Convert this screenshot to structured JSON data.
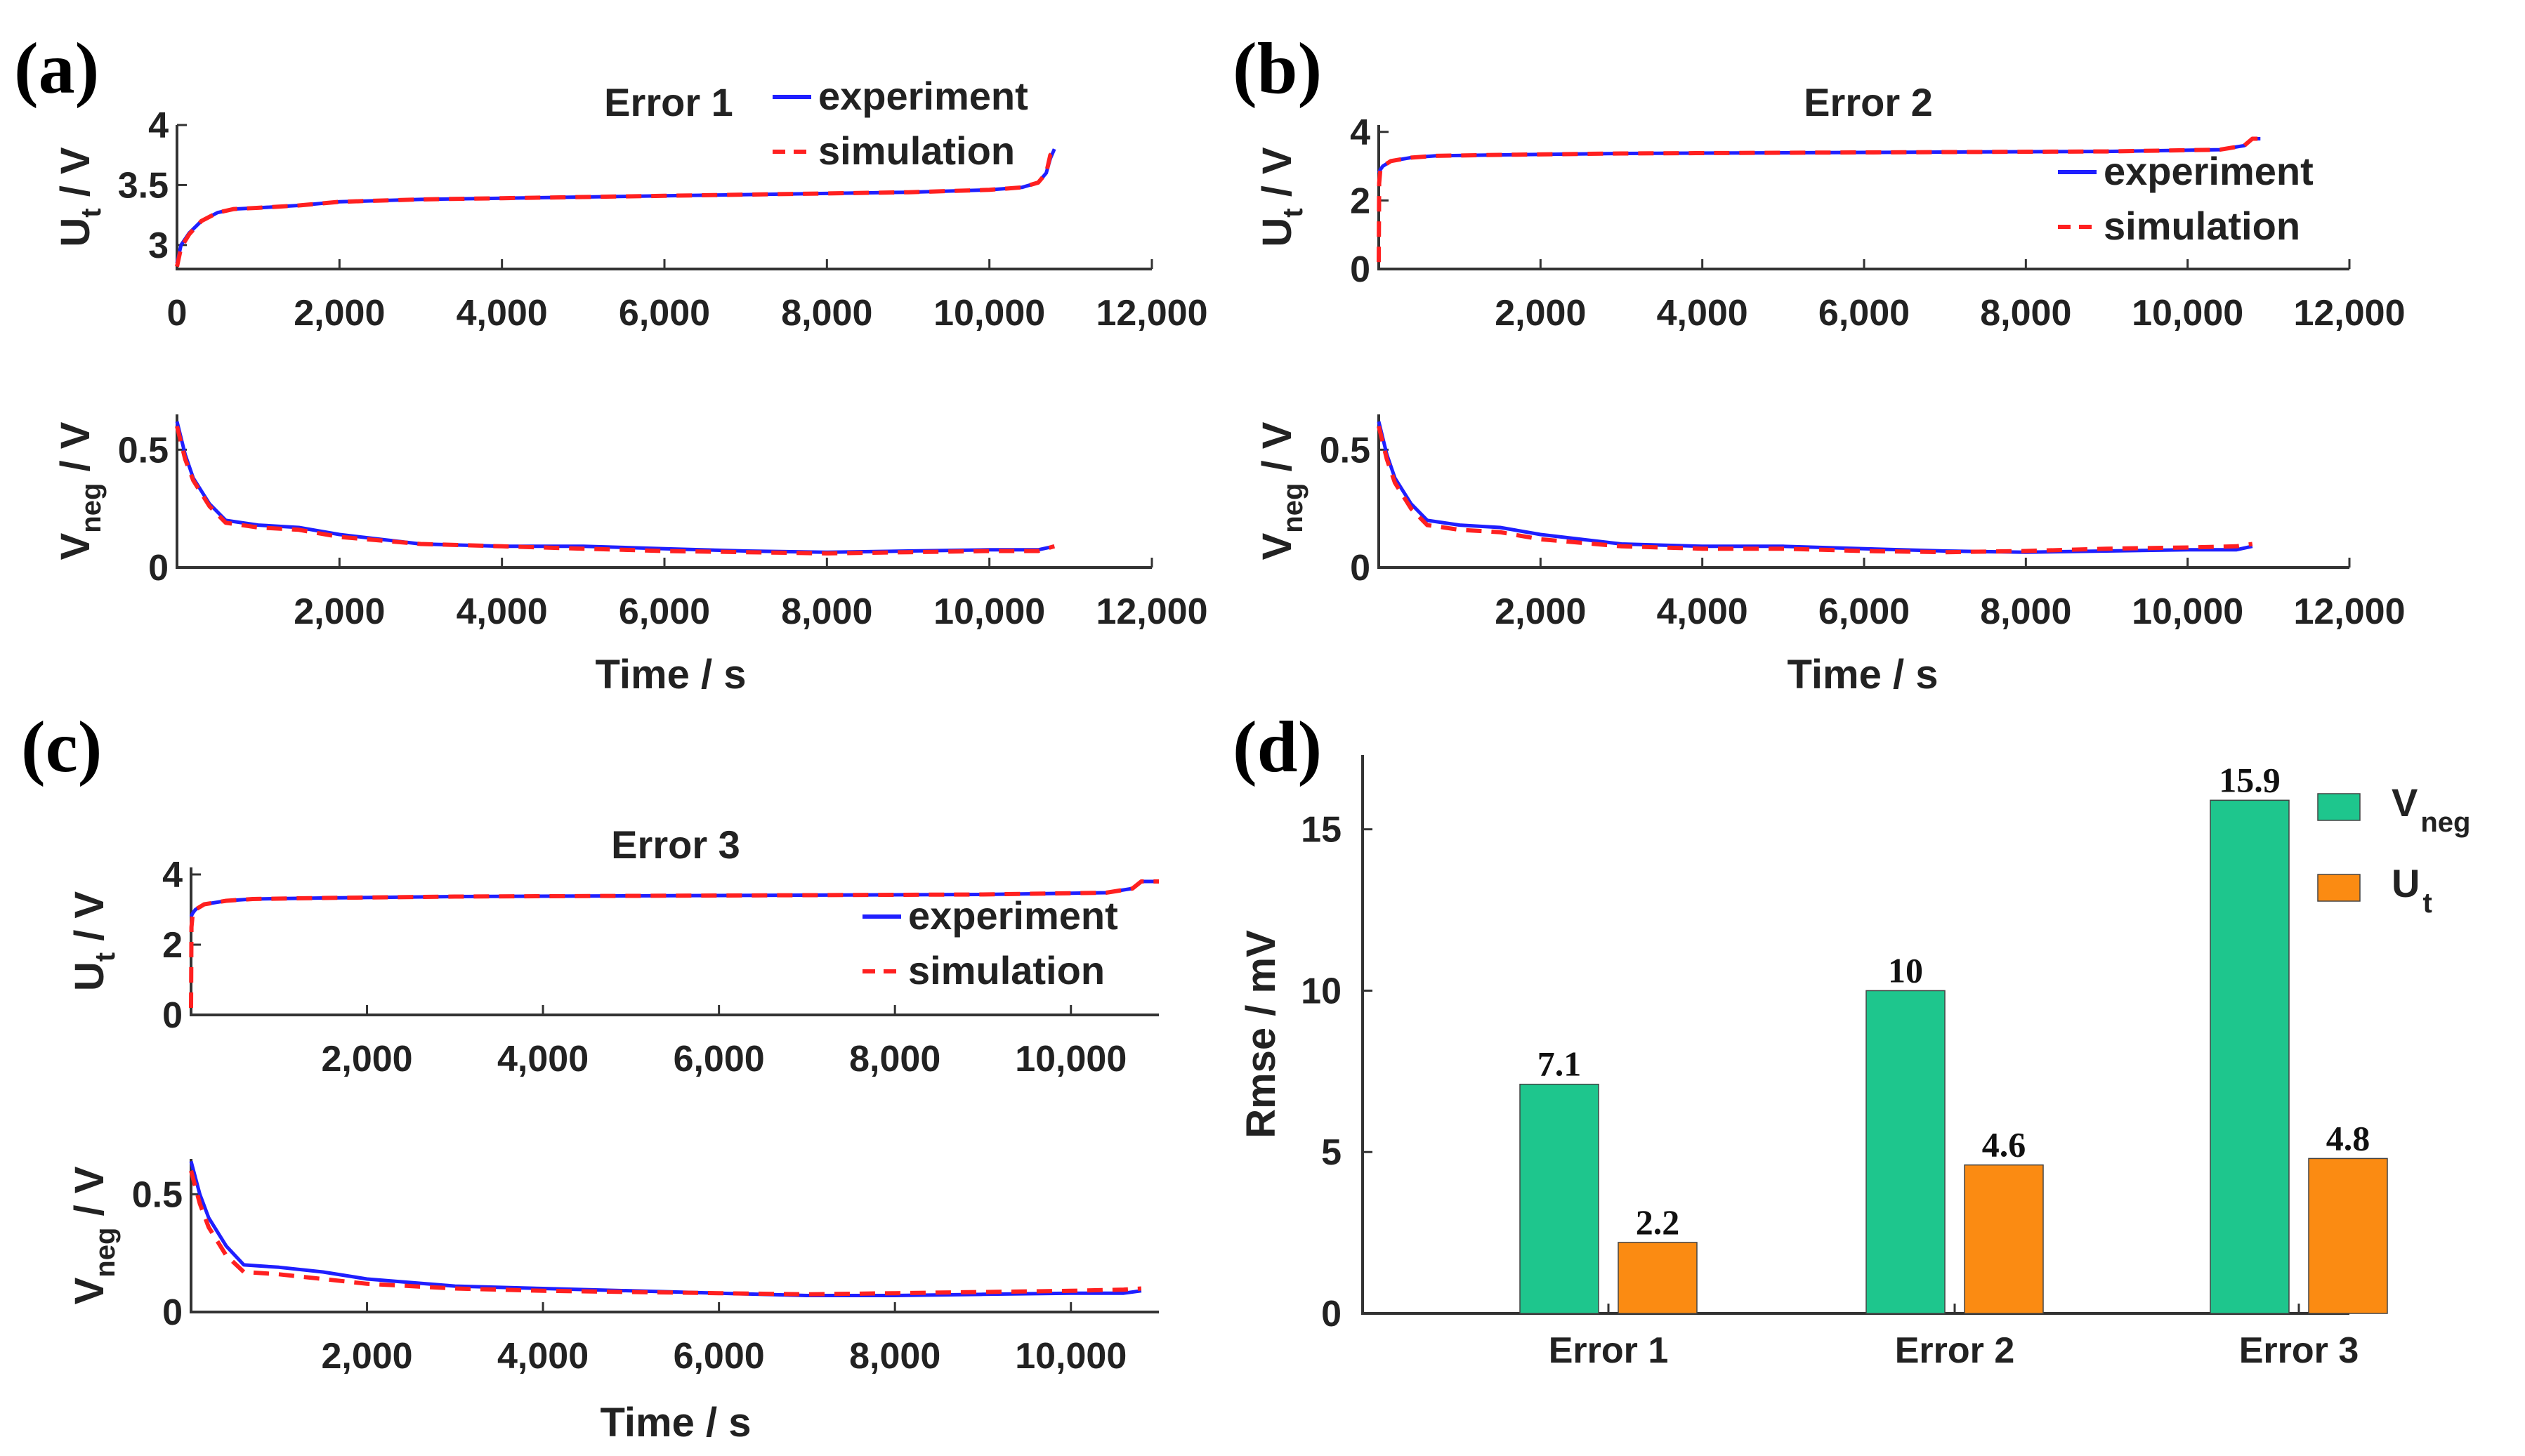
{
  "colors": {
    "experiment": "#1f1fff",
    "simulation": "#ff2020",
    "vneg": "#1ec68d",
    "ut": "#fb8b12"
  },
  "panel_labels": [
    "(a)",
    "(b)",
    "(c)",
    "(d)"
  ],
  "legend": {
    "experiment": "experiment",
    "simulation": "simulation"
  },
  "axis_text": {
    "ut_main": "U",
    "ut_sub": "t",
    "vneg_main": "V",
    "vneg_sub": "neg",
    "unit": " / V",
    "time": "Time / s"
  },
  "chart_data": [
    {
      "id": "a",
      "type": "line",
      "title": "Error 1",
      "top": {
        "ylim": [
          2.8,
          4.0
        ],
        "yticks": [
          "3",
          "3.5",
          "4"
        ],
        "ytick_values": [
          3,
          3.5,
          4
        ],
        "xlim": [
          0,
          12000
        ],
        "xticks": [
          "0",
          "2,000",
          "4,000",
          "6,000",
          "8,000",
          "10,000",
          "12,000"
        ],
        "xtick_values": [
          0,
          2000,
          4000,
          6000,
          8000,
          10000,
          12000
        ],
        "series": [
          {
            "name": "experiment",
            "x": [
              0,
              50,
              150,
              300,
              500,
              700,
              1000,
              1500,
              2000,
              3000,
              4000,
              5000,
              6000,
              7000,
              8000,
              9000,
              10000,
              10400,
              10600,
              10700,
              10750,
              10800
            ],
            "y": [
              2.85,
              3.0,
              3.1,
              3.2,
              3.27,
              3.3,
              3.31,
              3.33,
              3.36,
              3.38,
              3.39,
              3.4,
              3.41,
              3.42,
              3.43,
              3.44,
              3.46,
              3.48,
              3.52,
              3.6,
              3.72,
              3.8
            ]
          },
          {
            "name": "simulation",
            "x": [
              0,
              50,
              150,
              300,
              500,
              700,
              1000,
              1500,
              2000,
              3000,
              4000,
              5000,
              6000,
              7000,
              8000,
              9000,
              10000,
              10400,
              10600,
              10700,
              10750,
              10850
            ],
            "y": [
              2.82,
              2.98,
              3.09,
              3.2,
              3.27,
              3.3,
              3.31,
              3.33,
              3.36,
              3.38,
              3.39,
              3.4,
              3.41,
              3.42,
              3.43,
              3.44,
              3.46,
              3.48,
              3.52,
              3.6,
              3.75,
              3.8
            ]
          }
        ]
      },
      "bottom": {
        "ylim": [
          0,
          0.65
        ],
        "yticks": [
          "0",
          "0.5"
        ],
        "ytick_values": [
          0,
          0.5
        ],
        "xlim": [
          0,
          12000
        ],
        "xticks": [
          "2,000",
          "4,000",
          "6,000",
          "8,000",
          "10,000",
          "12,000"
        ],
        "xtick_values": [
          2000,
          4000,
          6000,
          8000,
          10000,
          12000
        ],
        "series": [
          {
            "name": "experiment",
            "x": [
              0,
              100,
              200,
              400,
              600,
              1000,
              1500,
              2000,
              3000,
              4000,
              5000,
              6000,
              7000,
              8000,
              9000,
              10000,
              10600,
              10800
            ],
            "y": [
              0.62,
              0.48,
              0.38,
              0.27,
              0.2,
              0.18,
              0.17,
              0.14,
              0.1,
              0.09,
              0.09,
              0.08,
              0.07,
              0.065,
              0.07,
              0.075,
              0.075,
              0.09
            ]
          },
          {
            "name": "simulation",
            "x": [
              0,
              100,
              200,
              400,
              600,
              1000,
              1500,
              2000,
              3000,
              4000,
              5000,
              6000,
              7000,
              8000,
              9000,
              10000,
              10600,
              10800
            ],
            "y": [
              0.6,
              0.46,
              0.37,
              0.26,
              0.19,
              0.17,
              0.16,
              0.13,
              0.1,
              0.09,
              0.08,
              0.07,
              0.065,
              0.06,
              0.065,
              0.07,
              0.07,
              0.09
            ]
          }
        ]
      }
    },
    {
      "id": "b",
      "type": "line",
      "title": "Error 2",
      "top": {
        "ylim": [
          0,
          4.2
        ],
        "yticks": [
          "0",
          "2",
          "4"
        ],
        "ytick_values": [
          0,
          2,
          4
        ],
        "xlim": [
          0,
          12000
        ],
        "xticks": [
          "2,000",
          "4,000",
          "6,000",
          "8,000",
          "10,000",
          "12,000"
        ],
        "xtick_values": [
          2000,
          4000,
          6000,
          8000,
          10000,
          12000
        ],
        "series": [
          {
            "name": "experiment",
            "x": [
              0,
              20,
              50,
              150,
              400,
              700,
              1500,
              3000,
              6000,
              9000,
              10400,
              10700,
              10800,
              10900
            ],
            "y": [
              2.8,
              2.9,
              3.0,
              3.15,
              3.25,
              3.3,
              3.33,
              3.37,
              3.4,
              3.43,
              3.48,
              3.6,
              3.8,
              3.8
            ]
          },
          {
            "name": "simulation",
            "x": [
              0,
              5,
              20,
              50,
              150,
              400,
              700,
              1500,
              3000,
              6000,
              9000,
              10400,
              10700,
              10800,
              10900
            ],
            "y": [
              0.2,
              2.5,
              2.9,
              3.0,
              3.15,
              3.25,
              3.3,
              3.33,
              3.37,
              3.4,
              3.43,
              3.48,
              3.6,
              3.8,
              3.8
            ]
          }
        ]
      },
      "bottom": {
        "ylim": [
          0,
          0.65
        ],
        "yticks": [
          "0",
          "0.5"
        ],
        "ytick_values": [
          0,
          0.5
        ],
        "xlim": [
          0,
          12000
        ],
        "xticks": [
          "2,000",
          "4,000",
          "6,000",
          "8,000",
          "10,000",
          "12,000"
        ],
        "xtick_values": [
          2000,
          4000,
          6000,
          8000,
          10000,
          12000
        ],
        "series": [
          {
            "name": "experiment",
            "x": [
              0,
              100,
              200,
              400,
              600,
              1000,
              1500,
              2000,
              3000,
              4000,
              5000,
              6000,
              7000,
              8000,
              9000,
              10000,
              10600,
              10800
            ],
            "y": [
              0.62,
              0.48,
              0.38,
              0.27,
              0.2,
              0.18,
              0.17,
              0.14,
              0.1,
              0.09,
              0.09,
              0.08,
              0.07,
              0.065,
              0.07,
              0.075,
              0.075,
              0.09
            ]
          },
          {
            "name": "simulation",
            "x": [
              0,
              100,
              200,
              400,
              600,
              1000,
              1500,
              2000,
              3000,
              4000,
              5000,
              6000,
              7000,
              8000,
              9000,
              10000,
              10600,
              10800
            ],
            "y": [
              0.6,
              0.46,
              0.36,
              0.25,
              0.18,
              0.16,
              0.15,
              0.12,
              0.09,
              0.08,
              0.08,
              0.07,
              0.065,
              0.07,
              0.08,
              0.085,
              0.09,
              0.1
            ]
          }
        ]
      }
    },
    {
      "id": "c",
      "type": "line",
      "title": "Error 3",
      "top": {
        "ylim": [
          0,
          4.2
        ],
        "yticks": [
          "0",
          "2",
          "4"
        ],
        "ytick_values": [
          0,
          2,
          4
        ],
        "xlim": [
          0,
          11000
        ],
        "xticks": [
          "2,000",
          "4,000",
          "6,000",
          "8,000",
          "10,000"
        ],
        "xtick_values": [
          2000,
          4000,
          6000,
          8000,
          10000
        ],
        "series": [
          {
            "name": "experiment",
            "x": [
              0,
              20,
              50,
              150,
              400,
              700,
              1500,
              3000,
              6000,
              9000,
              10400,
              10700,
              10800,
              11000
            ],
            "y": [
              2.8,
              2.9,
              3.0,
              3.15,
              3.25,
              3.3,
              3.33,
              3.37,
              3.4,
              3.43,
              3.48,
              3.6,
              3.8,
              3.8
            ]
          },
          {
            "name": "simulation",
            "x": [
              0,
              5,
              20,
              50,
              150,
              400,
              700,
              1500,
              3000,
              6000,
              9000,
              10400,
              10700,
              10800,
              11000
            ],
            "y": [
              0.2,
              2.5,
              2.9,
              3.0,
              3.15,
              3.25,
              3.3,
              3.33,
              3.37,
              3.4,
              3.43,
              3.48,
              3.6,
              3.8,
              3.8
            ]
          }
        ]
      },
      "bottom": {
        "ylim": [
          0,
          0.65
        ],
        "yticks": [
          "0",
          "0.5"
        ],
        "ytick_values": [
          0,
          0.5
        ],
        "xlim": [
          0,
          11000
        ],
        "xticks": [
          "2,000",
          "4,000",
          "6,000",
          "8,000",
          "10,000"
        ],
        "xtick_values": [
          2000,
          4000,
          6000,
          8000,
          10000
        ],
        "series": [
          {
            "name": "experiment",
            "x": [
              0,
              100,
              200,
              400,
              600,
              1000,
              1500,
              2000,
              3000,
              4000,
              5000,
              6000,
              7000,
              8000,
              9000,
              10000,
              10600,
              10800
            ],
            "y": [
              0.64,
              0.5,
              0.4,
              0.28,
              0.2,
              0.19,
              0.17,
              0.14,
              0.11,
              0.1,
              0.09,
              0.08,
              0.07,
              0.07,
              0.075,
              0.08,
              0.08,
              0.09
            ]
          },
          {
            "name": "simulation",
            "x": [
              0,
              100,
              200,
              400,
              600,
              1000,
              1500,
              2000,
              3000,
              4000,
              5000,
              6000,
              7000,
              8000,
              9000,
              10000,
              10600,
              10800
            ],
            "y": [
              0.6,
              0.46,
              0.36,
              0.24,
              0.17,
              0.16,
              0.14,
              0.12,
              0.1,
              0.09,
              0.085,
              0.08,
              0.075,
              0.08,
              0.085,
              0.09,
              0.095,
              0.1
            ]
          }
        ]
      }
    },
    {
      "id": "d",
      "type": "bar",
      "ylabel": "Rmse / mV",
      "ylim": [
        0,
        17.3
      ],
      "yticks": [
        "0",
        "5",
        "10",
        "15"
      ],
      "ytick_values": [
        0,
        5,
        10,
        15
      ],
      "categories": [
        "Error 1",
        "Error 2",
        "Error 3"
      ],
      "series": [
        {
          "name": "V",
          "name_sub": "neg",
          "values": [
            7.1,
            10,
            15.9
          ],
          "labels": [
            "7.1",
            "10",
            "15.9"
          ]
        },
        {
          "name": "U",
          "name_sub": "t",
          "values": [
            2.2,
            4.6,
            4.8
          ],
          "labels": [
            "2.2",
            "4.6",
            "4.8"
          ]
        }
      ]
    }
  ]
}
